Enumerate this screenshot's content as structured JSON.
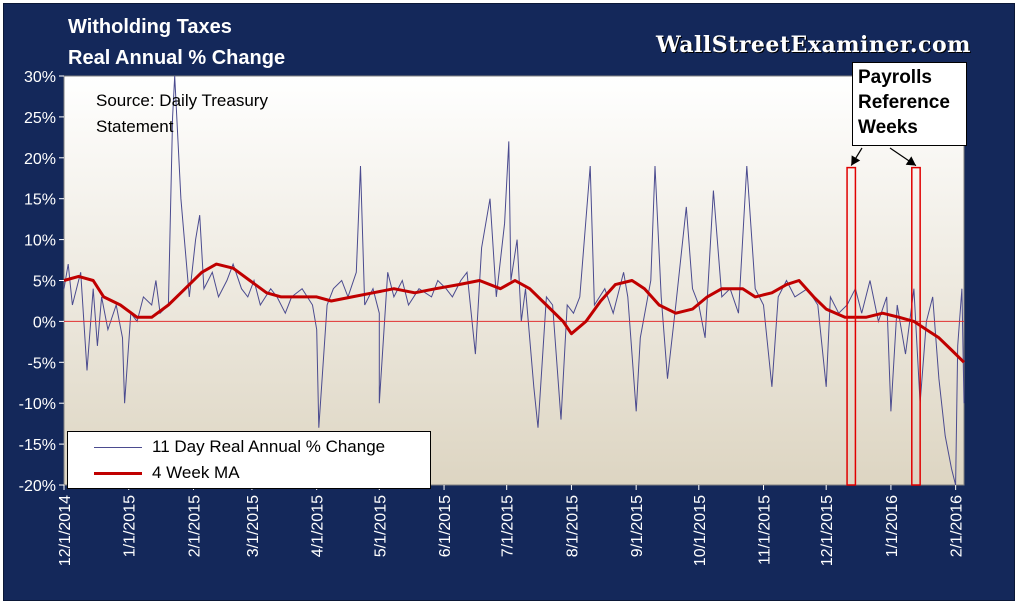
{
  "chart_data": {
    "type": "line",
    "title": "Witholding Taxes",
    "subtitle": "Real Annual % Change",
    "source_note": [
      "Source: Daily Treasury",
      "Statement"
    ],
    "watermark": "WallStreetExaminer.com",
    "ylim": [
      -20,
      30
    ],
    "y_ticks": [
      "30%",
      "25%",
      "20%",
      "15%",
      "10%",
      "5%",
      "0%",
      "-5%",
      "-10%",
      "-15%",
      "-20%"
    ],
    "x_ticks": [
      "12/1/2014",
      "1/1/2015",
      "2/1/2015",
      "3/1/2015",
      "4/1/2015",
      "5/1/2015",
      "6/1/2015",
      "7/1/2015",
      "8/1/2015",
      "9/1/2015",
      "10/1/2015",
      "11/1/2015",
      "12/1/2015",
      "1/1/2016",
      "2/1/2016"
    ],
    "x_range": [
      "12/1/2014",
      "2/5/2016"
    ],
    "grid": false,
    "zero_line": true,
    "legend_position": "bottom-left",
    "colors": {
      "daily": "#4b4b8f",
      "ma": "#c00000",
      "zero_line": "#e03030",
      "frame": "#14285a"
    },
    "annotation": {
      "text": [
        "Payrolls",
        "Reference",
        "Weeks"
      ],
      "highlight_date_ranges": [
        [
          "12/11/2015",
          "12/15/2015"
        ],
        [
          "1/11/2016",
          "1/15/2016"
        ]
      ]
    },
    "series": [
      {
        "name": "11 Day Real Annual % Change",
        "points": [
          [
            "12/1/2014",
            4
          ],
          [
            "12/3/2014",
            7
          ],
          [
            "12/5/2014",
            2
          ],
          [
            "12/9/2014",
            6
          ],
          [
            "12/12/2014",
            -6
          ],
          [
            "12/15/2014",
            4
          ],
          [
            "12/17/2014",
            -3
          ],
          [
            "12/19/2014",
            3
          ],
          [
            "12/22/2014",
            -1
          ],
          [
            "12/26/2014",
            2
          ],
          [
            "12/29/2014",
            -2
          ],
          [
            "12/30/2014",
            -10
          ],
          [
            "1/2/2015",
            1
          ],
          [
            "1/5/2015",
            0
          ],
          [
            "1/8/2015",
            3
          ],
          [
            "1/12/2015",
            2
          ],
          [
            "1/14/2015",
            5
          ],
          [
            "1/16/2015",
            1
          ],
          [
            "1/20/2015",
            2
          ],
          [
            "1/22/2015",
            25
          ],
          [
            "1/23/2015",
            30
          ],
          [
            "1/26/2015",
            15
          ],
          [
            "1/28/2015",
            9
          ],
          [
            "1/30/2015",
            3
          ],
          [
            "2/2/2015",
            10
          ],
          [
            "2/4/2015",
            13
          ],
          [
            "2/6/2015",
            4
          ],
          [
            "2/10/2015",
            6
          ],
          [
            "2/13/2015",
            3
          ],
          [
            "2/17/2015",
            5
          ],
          [
            "2/20/2015",
            7
          ],
          [
            "2/24/2015",
            4
          ],
          [
            "2/27/2015",
            3
          ],
          [
            "3/2/2015",
            5
          ],
          [
            "3/5/2015",
            2
          ],
          [
            "3/10/2015",
            4
          ],
          [
            "3/13/2015",
            3
          ],
          [
            "3/17/2015",
            1
          ],
          [
            "3/20/2015",
            3
          ],
          [
            "3/25/2015",
            4
          ],
          [
            "3/30/2015",
            2
          ],
          [
            "4/1/2015",
            -1
          ],
          [
            "4/2/2015",
            -13
          ],
          [
            "4/6/2015",
            2
          ],
          [
            "4/9/2015",
            4
          ],
          [
            "4/13/2015",
            5
          ],
          [
            "4/16/2015",
            3
          ],
          [
            "4/20/2015",
            6
          ],
          [
            "4/22/2015",
            19
          ],
          [
            "4/24/2015",
            2
          ],
          [
            "4/28/2015",
            4
          ],
          [
            "5/1/2015",
            1
          ],
          [
            "5/1/2015",
            -10
          ],
          [
            "5/5/2015",
            6
          ],
          [
            "5/8/2015",
            3
          ],
          [
            "5/12/2015",
            5
          ],
          [
            "5/15/2015",
            2
          ],
          [
            "5/20/2015",
            4
          ],
          [
            "5/26/2015",
            3
          ],
          [
            "5/29/2015",
            5
          ],
          [
            "6/2/2015",
            4
          ],
          [
            "6/5/2015",
            3
          ],
          [
            "6/9/2015",
            5
          ],
          [
            "6/12/2015",
            6
          ],
          [
            "6/16/2015",
            -4
          ],
          [
            "6/19/2015",
            9
          ],
          [
            "6/23/2015",
            15
          ],
          [
            "6/26/2015",
            3
          ],
          [
            "6/30/2015",
            12
          ],
          [
            "7/2/2015",
            22
          ],
          [
            "7/3/2015",
            5
          ],
          [
            "7/6/2015",
            10
          ],
          [
            "7/8/2015",
            0
          ],
          [
            "7/10/2015",
            4
          ],
          [
            "7/14/2015",
            -8
          ],
          [
            "7/16/2015",
            -13
          ],
          [
            "7/18/2015",
            -5
          ],
          [
            "7/20/2015",
            3
          ],
          [
            "7/23/2015",
            2
          ],
          [
            "7/27/2015",
            -12
          ],
          [
            "7/30/2015",
            2
          ],
          [
            "8/2/2015",
            1
          ],
          [
            "8/5/2015",
            3
          ],
          [
            "8/10/2015",
            19
          ],
          [
            "8/12/2015",
            2
          ],
          [
            "8/17/2015",
            4
          ],
          [
            "8/21/2015",
            1
          ],
          [
            "8/26/2015",
            6
          ],
          [
            "8/28/2015",
            3
          ],
          [
            "9/1/2015",
            -11
          ],
          [
            "9/3/2015",
            -2
          ],
          [
            "9/8/2015",
            5
          ],
          [
            "9/10/2015",
            19
          ],
          [
            "9/13/2015",
            3
          ],
          [
            "9/16/2015",
            -7
          ],
          [
            "9/20/2015",
            2
          ],
          [
            "9/25/2015",
            14
          ],
          [
            "9/28/2015",
            4
          ],
          [
            "10/1/2015",
            2
          ],
          [
            "10/4/2015",
            -2
          ],
          [
            "10/8/2015",
            16
          ],
          [
            "10/12/2015",
            3
          ],
          [
            "10/16/2015",
            4
          ],
          [
            "10/20/2015",
            1
          ],
          [
            "10/24/2015",
            19
          ],
          [
            "10/28/2015",
            4
          ],
          [
            "11/1/2015",
            2
          ],
          [
            "11/5/2015",
            -8
          ],
          [
            "11/8/2015",
            3
          ],
          [
            "11/12/2015",
            5
          ],
          [
            "11/16/2015",
            3
          ],
          [
            "11/22/2015",
            4
          ],
          [
            "11/27/2015",
            2
          ],
          [
            "12/1/2015",
            -8
          ],
          [
            "12/3/2015",
            3
          ],
          [
            "12/7/2015",
            1
          ],
          [
            "12/11/2015",
            2
          ],
          [
            "12/15/2015",
            4
          ],
          [
            "12/18/2015",
            1
          ],
          [
            "12/22/2015",
            5
          ],
          [
            "12/26/2015",
            0
          ],
          [
            "12/30/2015",
            3
          ],
          [
            "1/1/2016",
            -11
          ],
          [
            "1/4/2016",
            2
          ],
          [
            "1/8/2016",
            -4
          ],
          [
            "1/12/2016",
            4
          ],
          [
            "1/15/2016",
            -10
          ],
          [
            "1/18/2016",
            0
          ],
          [
            "1/21/2016",
            3
          ],
          [
            "1/24/2016",
            -7
          ],
          [
            "1/27/2016",
            -14
          ],
          [
            "1/30/2016",
            -18
          ],
          [
            "2/1/2016",
            -20
          ],
          [
            "2/2/2016",
            -3
          ],
          [
            "2/4/2016",
            4
          ],
          [
            "2/5/2016",
            -10
          ]
        ]
      },
      {
        "name": "4 Week MA",
        "points": [
          [
            "12/1/2014",
            5
          ],
          [
            "12/8/2014",
            5.5
          ],
          [
            "12/15/2014",
            5
          ],
          [
            "12/20/2014",
            3
          ],
          [
            "12/28/2014",
            2
          ],
          [
            "1/5/2015",
            0.5
          ],
          [
            "1/12/2015",
            0.5
          ],
          [
            "1/20/2015",
            2
          ],
          [
            "1/28/2015",
            4
          ],
          [
            "2/5/2015",
            6
          ],
          [
            "2/12/2015",
            7
          ],
          [
            "2/20/2015",
            6.5
          ],
          [
            "2/28/2015",
            5
          ],
          [
            "3/8/2015",
            3.5
          ],
          [
            "3/15/2015",
            3
          ],
          [
            "3/25/2015",
            3
          ],
          [
            "4/1/2015",
            3
          ],
          [
            "4/8/2015",
            2.5
          ],
          [
            "4/18/2015",
            3
          ],
          [
            "4/28/2015",
            3.5
          ],
          [
            "5/8/2015",
            4
          ],
          [
            "5/18/2015",
            3.5
          ],
          [
            "5/28/2015",
            4
          ],
          [
            "6/8/2015",
            4.5
          ],
          [
            "6/18/2015",
            5
          ],
          [
            "6/28/2015",
            4
          ],
          [
            "7/5/2015",
            5
          ],
          [
            "7/12/2015",
            4
          ],
          [
            "7/20/2015",
            2
          ],
          [
            "7/28/2015",
            0
          ],
          [
            "8/1/2015",
            -1.5
          ],
          [
            "8/8/2015",
            0
          ],
          [
            "8/15/2015",
            2.5
          ],
          [
            "8/22/2015",
            4.5
          ],
          [
            "8/30/2015",
            5
          ],
          [
            "9/5/2015",
            4
          ],
          [
            "9/12/2015",
            2
          ],
          [
            "9/20/2015",
            1
          ],
          [
            "9/28/2015",
            1.5
          ],
          [
            "10/5/2015",
            3
          ],
          [
            "10/12/2015",
            4
          ],
          [
            "10/22/2015",
            4
          ],
          [
            "10/28/2015",
            3
          ],
          [
            "11/5/2015",
            3.5
          ],
          [
            "11/12/2015",
            4.5
          ],
          [
            "11/18/2015",
            5
          ],
          [
            "11/25/2015",
            3
          ],
          [
            "12/1/2015",
            1.5
          ],
          [
            "12/10/2015",
            0.5
          ],
          [
            "12/20/2015",
            0.5
          ],
          [
            "12/28/2015",
            1
          ],
          [
            "1/5/2016",
            0.5
          ],
          [
            "1/12/2016",
            0
          ],
          [
            "1/18/2016",
            -1
          ],
          [
            "1/24/2016",
            -2
          ],
          [
            "1/30/2016",
            -3.5
          ],
          [
            "2/3/2016",
            -4.5
          ],
          [
            "2/5/2016",
            -5
          ]
        ]
      }
    ]
  }
}
